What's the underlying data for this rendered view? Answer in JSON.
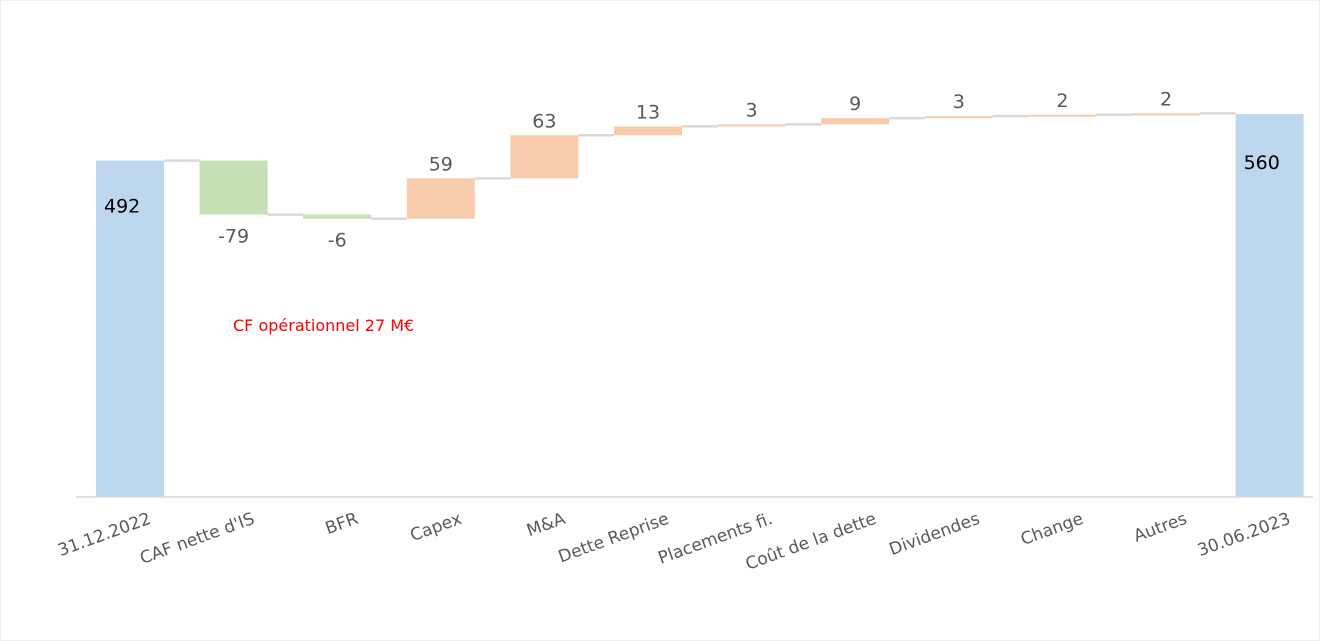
{
  "chart_data": {
    "type": "waterfall",
    "title": "",
    "xlabel": "",
    "ylabel": "",
    "ylim": [
      0,
      600
    ],
    "grid": false,
    "legend": "none",
    "categories": [
      "31.12.2022",
      "CAF nette d'IS",
      "BFR",
      "Capex",
      "M&A",
      "Dette Reprise",
      "Placements fi.",
      "Coût de la dette",
      "Dividendes",
      "Change",
      "Autres",
      "30.06.2023"
    ],
    "steps": [
      {
        "category": "31.12.2022",
        "value": 492,
        "kind": "total",
        "label": "492"
      },
      {
        "category": "CAF nette d'IS",
        "value": -79,
        "kind": "decrease",
        "label": "-79"
      },
      {
        "category": "BFR",
        "value": -6,
        "kind": "decrease",
        "label": "-6"
      },
      {
        "category": "Capex",
        "value": 59,
        "kind": "increase",
        "label": "59"
      },
      {
        "category": "M&A",
        "value": 63,
        "kind": "increase",
        "label": "63"
      },
      {
        "category": "Dette Reprise",
        "value": 13,
        "kind": "increase",
        "label": "13"
      },
      {
        "category": "Placements fi.",
        "value": 3,
        "kind": "increase",
        "label": "3"
      },
      {
        "category": "Coût de la dette",
        "value": 9,
        "kind": "increase",
        "label": "9"
      },
      {
        "category": "Dividendes",
        "value": 3,
        "kind": "increase",
        "label": "3"
      },
      {
        "category": "Change",
        "value": 2,
        "kind": "increase",
        "label": "2"
      },
      {
        "category": "Autres",
        "value": 2,
        "kind": "increase",
        "label": "2"
      },
      {
        "category": "30.06.2023",
        "value": 560,
        "kind": "total",
        "label": "560"
      }
    ],
    "annotations": [
      {
        "text": "CF opérationnel 27 M€",
        "color": "#ff0000"
      }
    ],
    "colors": {
      "total": "#bdd7ee",
      "decrease": "#c5e0b4",
      "increase": "#f8cbad",
      "connector": "#d9d9d9",
      "axis": "#d9d9d9",
      "label": "#595959",
      "total_label": "#000000"
    }
  }
}
